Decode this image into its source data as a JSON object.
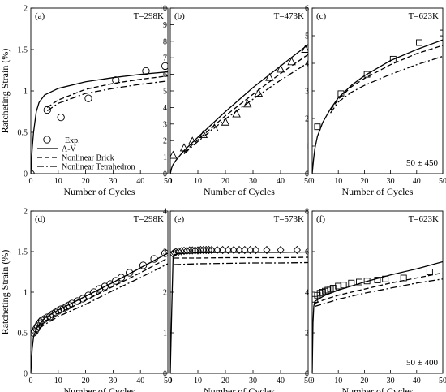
{
  "figure": {
    "ylabel": "Ratcheting Strain (%)",
    "xlabel": "Number of Cycles",
    "legend": [
      "Exp.",
      "A-V",
      "Nonlinear Brick",
      "Nonlinear Tetrahedron"
    ]
  },
  "chart_data": [
    {
      "type": "line",
      "panel": "(a)",
      "temperature": "T=298K",
      "marker": "circle",
      "xlim": [
        0,
        50
      ],
      "ylim": [
        0,
        2
      ],
      "xticks": [
        0,
        10,
        20,
        30,
        40,
        50
      ],
      "yticks": [
        0,
        0.5,
        1,
        1.5,
        2
      ],
      "xlabel": "Number of Cycles",
      "ylabel": "Ratcheting Strain (%)",
      "annotation": "",
      "experimental": [
        [
          0,
          0
        ],
        [
          6,
          0.77
        ],
        [
          11,
          0.68
        ],
        [
          21,
          0.91
        ],
        [
          31,
          1.13
        ],
        [
          42,
          1.24
        ],
        [
          49,
          1.3
        ]
      ],
      "series": [
        {
          "name": "A-V",
          "dash": "solid",
          "points": [
            [
              0,
              0
            ],
            [
              0.5,
              0.3
            ],
            [
              1,
              0.5
            ],
            [
              2,
              0.75
            ],
            [
              3,
              0.86
            ],
            [
              5,
              0.95
            ],
            [
              10,
              1.03
            ],
            [
              20,
              1.11
            ],
            [
              30,
              1.16
            ],
            [
              40,
              1.2
            ],
            [
              50,
              1.23
            ]
          ]
        },
        {
          "name": "Nonlinear Brick",
          "dash": "dashed",
          "points": [
            [
              6,
              0.8
            ],
            [
              10,
              0.89
            ],
            [
              20,
              1.02
            ],
            [
              30,
              1.09
            ],
            [
              40,
              1.14
            ],
            [
              50,
              1.18
            ]
          ]
        },
        {
          "name": "Nonlinear Tetrahedron",
          "dash": "dash-dot",
          "points": [
            [
              6,
              0.76
            ],
            [
              10,
              0.85
            ],
            [
              20,
              0.97
            ],
            [
              30,
              1.03
            ],
            [
              40,
              1.08
            ],
            [
              50,
              1.12
            ]
          ]
        }
      ]
    },
    {
      "type": "line",
      "panel": "(b)",
      "temperature": "T=473K",
      "marker": "triangle",
      "xlim": [
        0,
        50
      ],
      "ylim": [
        0,
        10
      ],
      "xticks": [
        0,
        10,
        20,
        30,
        40,
        50
      ],
      "yticks": [
        0,
        1,
        2,
        3,
        4,
        5,
        6,
        7,
        8,
        9,
        10
      ],
      "xlabel": "Number of Cycles",
      "ylabel": "",
      "annotation": "",
      "experimental": [
        [
          1,
          1.1
        ],
        [
          5,
          1.55
        ],
        [
          8,
          1.95
        ],
        [
          12,
          2.35
        ],
        [
          16,
          2.75
        ],
        [
          20,
          3.1
        ],
        [
          24,
          3.6
        ],
        [
          28,
          4.2
        ],
        [
          32,
          4.85
        ],
        [
          36,
          5.8
        ],
        [
          40,
          6.3
        ],
        [
          44,
          6.75
        ],
        [
          49,
          7.5
        ]
      ],
      "series": [
        {
          "name": "A-V",
          "dash": "solid",
          "points": [
            [
              0,
              0
            ],
            [
              0.5,
              0.35
            ],
            [
              1,
              0.55
            ],
            [
              2,
              0.8
            ],
            [
              5,
              1.4
            ],
            [
              10,
              2.2
            ],
            [
              20,
              3.75
            ],
            [
              30,
              5.2
            ],
            [
              40,
              6.5
            ],
            [
              50,
              7.8
            ]
          ]
        },
        {
          "name": "Nonlinear Brick",
          "dash": "dashed",
          "points": [
            [
              5,
              1.3
            ],
            [
              10,
              2.05
            ],
            [
              20,
              3.5
            ],
            [
              30,
              4.8
            ],
            [
              40,
              6.05
            ],
            [
              50,
              7.2
            ]
          ]
        },
        {
          "name": "Nonlinear Tetrahedron",
          "dash": "dash-dot",
          "points": [
            [
              5,
              1.2
            ],
            [
              10,
              1.95
            ],
            [
              20,
              3.3
            ],
            [
              30,
              4.5
            ],
            [
              40,
              5.65
            ],
            [
              50,
              6.7
            ]
          ]
        }
      ]
    },
    {
      "type": "line",
      "panel": "(c)",
      "temperature": "T=623K",
      "marker": "square",
      "xlim": [
        0,
        50
      ],
      "ylim": [
        0,
        6
      ],
      "xticks": [
        0,
        10,
        20,
        30,
        40,
        50
      ],
      "yticks": [
        0,
        1,
        2,
        3,
        4,
        5,
        6
      ],
      "xlabel": "Number of Cycles",
      "ylabel": "",
      "annotation": "50 ± 450",
      "experimental": [
        [
          2,
          1.7
        ],
        [
          11,
          2.9
        ],
        [
          21,
          3.6
        ],
        [
          31,
          4.15
        ],
        [
          41,
          4.75
        ],
        [
          50,
          5.1
        ]
      ],
      "series": [
        {
          "name": "A-V",
          "dash": "solid",
          "points": [
            [
              0,
              0
            ],
            [
              0.5,
              0.5
            ],
            [
              1,
              0.9
            ],
            [
              2,
              1.35
            ],
            [
              4,
              1.85
            ],
            [
              7,
              2.35
            ],
            [
              10,
              2.75
            ],
            [
              15,
              3.2
            ],
            [
              20,
              3.55
            ],
            [
              30,
              4.1
            ],
            [
              40,
              4.5
            ],
            [
              50,
              4.85
            ]
          ]
        },
        {
          "name": "Nonlinear Brick",
          "dash": "dashed",
          "points": [
            [
              7,
              2.3
            ],
            [
              10,
              2.7
            ],
            [
              15,
              3.15
            ],
            [
              20,
              3.45
            ],
            [
              30,
              3.95
            ],
            [
              40,
              4.35
            ],
            [
              50,
              4.65
            ]
          ]
        },
        {
          "name": "Nonlinear Tetrahedron",
          "dash": "dash-dot",
          "points": [
            [
              7,
              2.2
            ],
            [
              10,
              2.6
            ],
            [
              15,
              2.95
            ],
            [
              20,
              3.2
            ],
            [
              30,
              3.6
            ],
            [
              40,
              3.95
            ],
            [
              50,
              4.25
            ]
          ]
        }
      ]
    },
    {
      "type": "line",
      "panel": "(d)",
      "temperature": "T=298K",
      "marker": "circle",
      "xlim": [
        0,
        50
      ],
      "ylim": [
        0,
        2
      ],
      "xticks": [
        0,
        10,
        20,
        30,
        40,
        50
      ],
      "yticks": [
        0,
        0.5,
        1,
        1.5,
        2
      ],
      "xlabel": "Number of Cycles",
      "ylabel": "Ratcheting Strain (%)",
      "annotation": "",
      "experimental": [
        [
          1,
          0.5
        ],
        [
          1.5,
          0.52
        ],
        [
          2,
          0.55
        ],
        [
          2.5,
          0.58
        ],
        [
          3,
          0.61
        ],
        [
          3.5,
          0.63
        ],
        [
          4,
          0.65
        ],
        [
          5,
          0.67
        ],
        [
          6,
          0.69
        ],
        [
          7,
          0.7
        ],
        [
          8,
          0.73
        ],
        [
          9,
          0.75
        ],
        [
          10,
          0.77
        ],
        [
          11,
          0.79
        ],
        [
          12,
          0.8
        ],
        [
          13,
          0.82
        ],
        [
          14,
          0.84
        ],
        [
          15,
          0.86
        ],
        [
          17,
          0.89
        ],
        [
          19,
          0.92
        ],
        [
          21,
          0.96
        ],
        [
          23,
          1.0
        ],
        [
          25,
          1.04
        ],
        [
          27,
          1.07
        ],
        [
          29,
          1.1
        ],
        [
          31,
          1.14
        ],
        [
          33,
          1.18
        ],
        [
          36,
          1.24
        ],
        [
          41,
          1.33
        ],
        [
          45,
          1.41
        ],
        [
          49,
          1.48
        ]
      ],
      "series": [
        {
          "name": "A-V",
          "dash": "solid",
          "points": [
            [
              0,
              0
            ],
            [
              0.5,
              0.3
            ],
            [
              1,
              0.45
            ],
            [
              2,
              0.55
            ],
            [
              3,
              0.6
            ],
            [
              5,
              0.68
            ],
            [
              10,
              0.78
            ],
            [
              20,
              0.95
            ],
            [
              30,
              1.12
            ],
            [
              40,
              1.3
            ],
            [
              50,
              1.48
            ]
          ]
        },
        {
          "name": "Nonlinear Brick",
          "dash": "dashed",
          "points": [
            [
              3,
              0.58
            ],
            [
              5,
              0.64
            ],
            [
              10,
              0.74
            ],
            [
              20,
              0.9
            ],
            [
              30,
              1.07
            ],
            [
              40,
              1.24
            ],
            [
              50,
              1.42
            ]
          ]
        },
        {
          "name": "Nonlinear Tetrahedron",
          "dash": "dash-dot",
          "points": [
            [
              3,
              0.55
            ],
            [
              5,
              0.6
            ],
            [
              10,
              0.7
            ],
            [
              20,
              0.85
            ],
            [
              30,
              1.02
            ],
            [
              40,
              1.18
            ],
            [
              50,
              1.35
            ]
          ]
        }
      ]
    },
    {
      "type": "line",
      "panel": "(e)",
      "temperature": "T=573K",
      "marker": "diamond",
      "xlim": [
        0,
        50
      ],
      "ylim": [
        0,
        4
      ],
      "xticks": [
        0,
        10,
        20,
        30,
        40,
        50
      ],
      "yticks": [
        0,
        1,
        2,
        3,
        4
      ],
      "xlabel": "Number of Cycles",
      "ylabel": "",
      "annotation": "",
      "experimental": [
        [
          1,
          2.95
        ],
        [
          1.5,
          2.97
        ],
        [
          2,
          2.99
        ],
        [
          3,
          3.0
        ],
        [
          4,
          3.01
        ],
        [
          5,
          3.02
        ],
        [
          6,
          3.02
        ],
        [
          7,
          3.03
        ],
        [
          8,
          3.03
        ],
        [
          9,
          3.03
        ],
        [
          10,
          3.03
        ],
        [
          11,
          3.04
        ],
        [
          12,
          3.04
        ],
        [
          13,
          3.04
        ],
        [
          14,
          3.04
        ],
        [
          15,
          3.04
        ],
        [
          17,
          3.04
        ],
        [
          19,
          3.04
        ],
        [
          21,
          3.04
        ],
        [
          23,
          3.04
        ],
        [
          25,
          3.04
        ],
        [
          27,
          3.04
        ],
        [
          29,
          3.04
        ],
        [
          31,
          3.04
        ],
        [
          35,
          3.04
        ],
        [
          40,
          3.04
        ],
        [
          46,
          3.04
        ]
      ],
      "series": [
        {
          "name": "A-V",
          "dash": "solid",
          "points": [
            [
              0,
              0
            ],
            [
              0.5,
              1.5
            ],
            [
              1,
              2.85
            ],
            [
              1.5,
              2.92
            ],
            [
              3,
              2.95
            ],
            [
              10,
              2.97
            ],
            [
              20,
              2.98
            ],
            [
              30,
              2.98
            ],
            [
              40,
              2.98
            ],
            [
              50,
              2.99
            ]
          ]
        },
        {
          "name": "Nonlinear Brick",
          "dash": "dashed",
          "points": [
            [
              1.5,
              2.84
            ],
            [
              10,
              2.84
            ],
            [
              20,
              2.85
            ],
            [
              30,
              2.85
            ],
            [
              40,
              2.85
            ],
            [
              50,
              2.86
            ]
          ]
        },
        {
          "name": "Nonlinear Tetrahedron",
          "dash": "dash-dot",
          "points": [
            [
              1.5,
              2.68
            ],
            [
              10,
              2.7
            ],
            [
              20,
              2.71
            ],
            [
              30,
              2.72
            ],
            [
              40,
              2.72
            ],
            [
              50,
              2.73
            ]
          ]
        }
      ]
    },
    {
      "type": "line",
      "panel": "(f)",
      "temperature": "T=623K",
      "marker": "square",
      "xlim": [
        0,
        50
      ],
      "ylim": [
        0,
        8
      ],
      "xticks": [
        0,
        10,
        20,
        30,
        40,
        50
      ],
      "yticks": [
        0,
        2,
        4,
        6,
        8
      ],
      "xlabel": "Number of Cycles",
      "ylabel": "",
      "annotation": "50 ± 400",
      "experimental": [
        [
          1,
          3.65
        ],
        [
          2,
          3.85
        ],
        [
          3,
          3.95
        ],
        [
          4,
          4.0
        ],
        [
          5,
          4.05
        ],
        [
          6,
          4.1
        ],
        [
          7,
          4.15
        ],
        [
          8,
          4.2
        ],
        [
          10,
          4.3
        ],
        [
          12,
          4.35
        ],
        [
          15,
          4.45
        ],
        [
          18,
          4.5
        ],
        [
          21,
          4.55
        ],
        [
          25,
          4.6
        ],
        [
          28,
          4.65
        ],
        [
          35,
          4.7
        ],
        [
          45,
          5.0
        ]
      ],
      "series": [
        {
          "name": "A-V",
          "dash": "solid",
          "points": [
            [
              0,
              0
            ],
            [
              0.3,
              2.5
            ],
            [
              0.6,
              3.3
            ],
            [
              1,
              3.55
            ],
            [
              3,
              3.7
            ],
            [
              5,
              3.85
            ],
            [
              10,
              4.1
            ],
            [
              20,
              4.5
            ],
            [
              30,
              4.85
            ],
            [
              40,
              5.15
            ],
            [
              50,
              5.5
            ]
          ]
        },
        {
          "name": "Nonlinear Brick",
          "dash": "dashed",
          "points": [
            [
              1,
              3.45
            ],
            [
              5,
              3.65
            ],
            [
              10,
              3.85
            ],
            [
              20,
              4.15
            ],
            [
              30,
              4.45
            ],
            [
              40,
              4.7
            ],
            [
              50,
              4.95
            ]
          ]
        },
        {
          "name": "Nonlinear Tetrahedron",
          "dash": "dash-dot",
          "points": [
            [
              1,
              3.3
            ],
            [
              5,
              3.45
            ],
            [
              10,
              3.65
            ],
            [
              20,
              3.95
            ],
            [
              30,
              4.2
            ],
            [
              40,
              4.45
            ],
            [
              50,
              4.65
            ]
          ]
        }
      ]
    }
  ]
}
